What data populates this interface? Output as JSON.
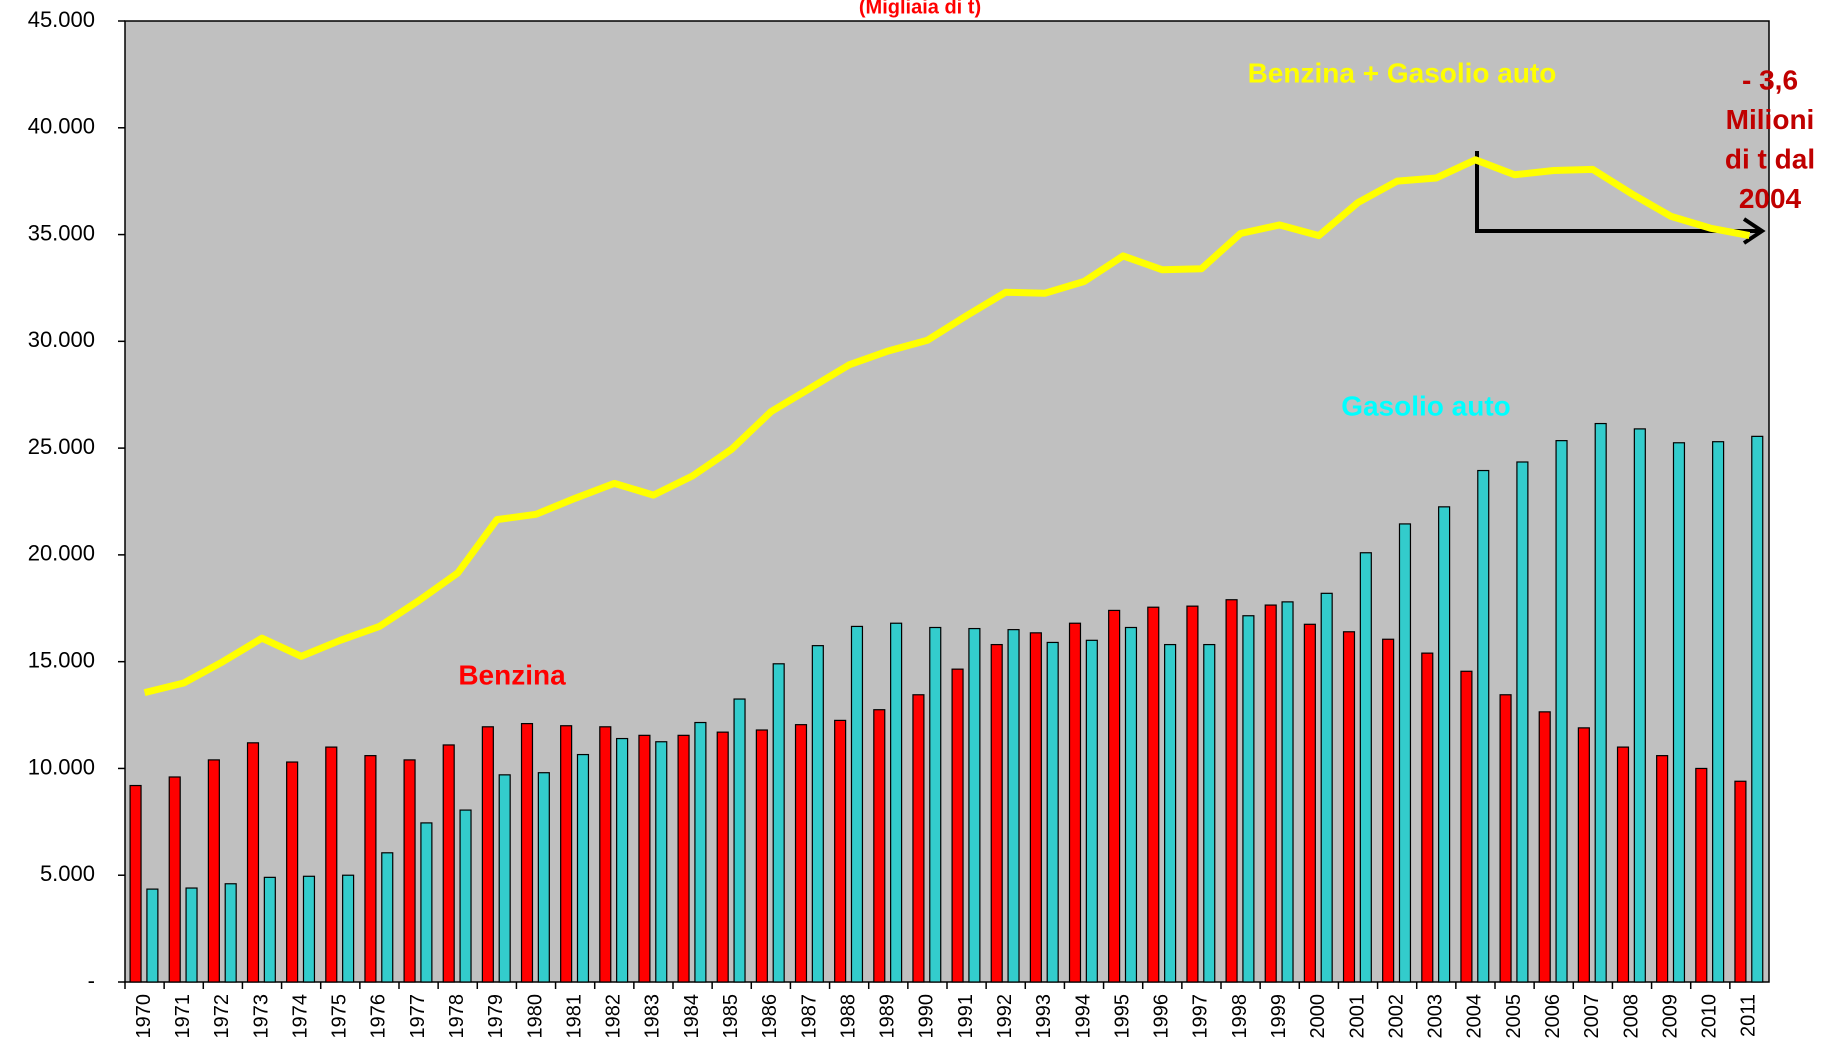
{
  "chart_data": {
    "type": "bar_line",
    "title": "(Migliaia di t)",
    "categories": [
      "1970",
      "1971",
      "1972",
      "1973",
      "1974",
      "1975",
      "1976",
      "1977",
      "1978",
      "1979",
      "1980",
      "1981",
      "1982",
      "1983",
      "1984",
      "1985",
      "1986",
      "1987",
      "1988",
      "1989",
      "1990",
      "1991",
      "1992",
      "1993",
      "1994",
      "1995",
      "1996",
      "1997",
      "1998",
      "1999",
      "2000",
      "2001",
      "2002",
      "2003",
      "2004",
      "2005",
      "2006",
      "2007",
      "2008",
      "2009",
      "2010",
      "2011"
    ],
    "series": [
      {
        "name": "Benzina",
        "color": "#ff0000",
        "kind": "bar",
        "values": [
          9200,
          9600,
          10400,
          11200,
          10300,
          11000,
          10600,
          10400,
          11100,
          11950,
          12100,
          12000,
          11950,
          11550,
          11550,
          11700,
          11800,
          12050,
          12250,
          12750,
          13450,
          14650,
          15800,
          16350,
          16800,
          17400,
          17550,
          17600,
          17900,
          17650,
          16750,
          16400,
          16050,
          15400,
          14550,
          13450,
          12650,
          11900,
          11000,
          10600,
          10000,
          9400
        ]
      },
      {
        "name": "Gasolio auto",
        "color": "#33cccc",
        "kind": "bar",
        "values": [
          4350,
          4400,
          4600,
          4900,
          4950,
          5000,
          6050,
          7450,
          8050,
          9700,
          9800,
          10650,
          11400,
          11250,
          12150,
          13250,
          14900,
          15750,
          16650,
          16800,
          16600,
          16550,
          16500,
          15900,
          16000,
          16600,
          15800,
          15800,
          17150,
          17800,
          18200,
          20100,
          21450,
          22250,
          23950,
          24350,
          25350,
          26150,
          25900,
          25250,
          25300,
          25550
        ]
      },
      {
        "name": "Benzina + Gasolio auto",
        "color": "#ffff00",
        "kind": "line",
        "values": [
          13550,
          14000,
          15000,
          16100,
          15250,
          16000,
          16650,
          17850,
          19150,
          21650,
          21900,
          22650,
          23350,
          22800,
          23700,
          24950,
          26700,
          27800,
          28900,
          29550,
          30050,
          31200,
          32300,
          32250,
          32800,
          34000,
          33350,
          33400,
          35050,
          35450,
          34950,
          36500,
          37500,
          37650,
          38500,
          37800,
          38000,
          38050,
          36900,
          35850,
          35300,
          34950
        ]
      }
    ],
    "annotation_lines": [
      "- 3,6",
      "Milioni",
      "di t dal",
      "2004"
    ],
    "ylim": [
      0,
      45000
    ],
    "yticks": [
      {
        "value": 0,
        "label": "-"
      },
      {
        "value": 5000,
        "label": "5.000"
      },
      {
        "value": 10000,
        "label": "10.000"
      },
      {
        "value": 15000,
        "label": "15.000"
      },
      {
        "value": 20000,
        "label": "20.000"
      },
      {
        "value": 25000,
        "label": "25.000"
      },
      {
        "value": 30000,
        "label": "30.000"
      },
      {
        "value": 35000,
        "label": "35.000"
      },
      {
        "value": 40000,
        "label": "40.000"
      },
      {
        "value": 45000,
        "label": "45.000"
      }
    ],
    "grid": false,
    "plot_background": "#c0c0c0"
  }
}
